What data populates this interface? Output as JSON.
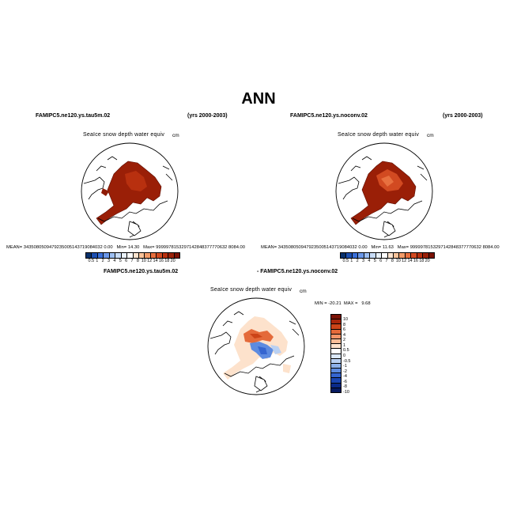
{
  "main_title": "ANN",
  "panels": [
    {
      "case": "FAMIPC5.ne120.ys.tau5m.02",
      "years": "(yrs 2000-2003)",
      "variable": "SeaIce snow depth water equiv",
      "units": "cm",
      "mean_label": "MEAN=",
      "mean_value": "3435080509479235005143719084032 0.00",
      "min_label": "Min=",
      "min_value": "14.30",
      "max_label": "Max=",
      "max_value": "9999978153297142848377770632 8084.00"
    },
    {
      "case": "FAMIPC5.ne120.ys.noconv.02",
      "years": "(yrs 2000-2003)",
      "variable": "SeaIce snow depth water equiv",
      "units": "cm",
      "mean_label": "MEAN=",
      "mean_value": "3435080509479235005143719084032 0.00",
      "min_label": "Min=",
      "min_value": "11.63",
      "max_label": "Max=",
      "max_value": "9999978153297142848377770632 8084.00"
    }
  ],
  "diff_panel": {
    "case_a": "FAMIPC5.ne120.ys.tau5m.02",
    "case_b": "- FAMIPC5.ne120.ys.noconv.02",
    "variable": "SeaIce snow depth water equiv",
    "units": "cm",
    "min_label": "MIN =",
    "min_value": "-20.21",
    "max_label": "MAX =",
    "max_value": "9.68"
  },
  "colorbar_abs": {
    "labels": [
      "0.5",
      "1",
      "2",
      "3",
      "4",
      "5",
      "6",
      "7",
      "8",
      "10",
      "12",
      "14",
      "16",
      "18",
      "20"
    ],
    "colors": [
      "#08306b",
      "#1c4fb0",
      "#3a6fd8",
      "#6a97e8",
      "#9dbff2",
      "#c8dcf7",
      "#eaf2fb",
      "#ffffff",
      "#fde4cf",
      "#f9c39a",
      "#f29b69",
      "#e8703f",
      "#d24a21",
      "#b8300f",
      "#992008",
      "#7a1205"
    ]
  },
  "colorbar_diff": {
    "labels": [
      "10",
      "8",
      "6",
      "4",
      "2",
      "1",
      "0.5",
      "0",
      "-0.5",
      "-1",
      "-2",
      "-4",
      "-6",
      "-8",
      "-10"
    ],
    "colors": [
      "#7a1205",
      "#a8260a",
      "#cc4418",
      "#e46a3a",
      "#f39468",
      "#f9bd98",
      "#fde2cc",
      "#ffffff",
      "#dbe8f8",
      "#b9d0f2",
      "#8cb0ea",
      "#5d8be0",
      "#3565d0",
      "#1a45b0",
      "#0a2a88",
      "#061a60"
    ]
  }
}
